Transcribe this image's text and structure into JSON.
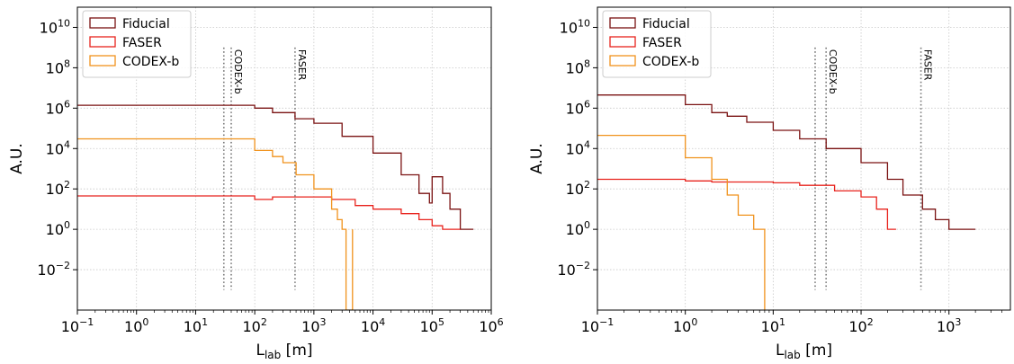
{
  "chart_data": [
    {
      "type": "line",
      "step": true,
      "xlabel_main": "L",
      "xlabel_sub": "lab",
      "xlabel_unit": " [m]",
      "ylabel": "A.U.",
      "xscale": "log",
      "yscale": "log",
      "xlim": [
        0.1,
        1000000
      ],
      "ylim": [
        0.0001,
        100000000000
      ],
      "grid": true,
      "legend_position": "top-left",
      "x_ticks": [
        {
          "value": 0.1,
          "base": "10",
          "exp": "−1"
        },
        {
          "value": 1,
          "base": "10",
          "exp": "0"
        },
        {
          "value": 10,
          "base": "10",
          "exp": "1"
        },
        {
          "value": 100,
          "base": "10",
          "exp": "2"
        },
        {
          "value": 1000,
          "base": "10",
          "exp": "3"
        },
        {
          "value": 10000,
          "base": "10",
          "exp": "4"
        },
        {
          "value": 100000,
          "base": "10",
          "exp": "5"
        },
        {
          "value": 1000000,
          "base": "10",
          "exp": "6"
        }
      ],
      "y_ticks": [
        {
          "value": 0.01,
          "base": "10",
          "exp": "−2"
        },
        {
          "value": 1,
          "base": "10",
          "exp": "0"
        },
        {
          "value": 100,
          "base": "10",
          "exp": "2"
        },
        {
          "value": 10000,
          "base": "10",
          "exp": "4"
        },
        {
          "value": 1000000,
          "base": "10",
          "exp": "6"
        },
        {
          "value": 100000000,
          "base": "10",
          "exp": "8"
        },
        {
          "value": 10000000000,
          "base": "10",
          "exp": "10"
        }
      ],
      "vlines": [
        {
          "x": 30,
          "label": ""
        },
        {
          "x": 40,
          "label": "CODEX-b"
        },
        {
          "x": 480,
          "label": "FASER"
        }
      ],
      "series": [
        {
          "name": "Fiducial",
          "color": "#7a1212",
          "points": [
            [
              0.1,
              1400000
            ],
            [
              100,
              1400000
            ],
            [
              100,
              1000000
            ],
            [
              200,
              1000000
            ],
            [
              200,
              600000
            ],
            [
              480,
              300000
            ],
            [
              1000,
              180000
            ],
            [
              3000,
              40000
            ],
            [
              10000,
              6000
            ],
            [
              30000,
              500
            ],
            [
              60000,
              60
            ],
            [
              90000,
              20
            ],
            [
              100000,
              400
            ],
            [
              150000,
              60
            ],
            [
              200000,
              10
            ],
            [
              300000,
              1
            ],
            [
              500000,
              1
            ]
          ]
        },
        {
          "name": "FASER",
          "color": "#e8231d",
          "points": [
            [
              0.1,
              45
            ],
            [
              100,
              45
            ],
            [
              100,
              30
            ],
            [
              200,
              30
            ],
            [
              200,
              40
            ],
            [
              1000,
              40
            ],
            [
              2000,
              30
            ],
            [
              5000,
              15
            ],
            [
              10000,
              10
            ],
            [
              30000,
              6
            ],
            [
              60000,
              3
            ],
            [
              100000,
              1.5
            ],
            [
              150000,
              1
            ],
            [
              300000,
              1
            ]
          ]
        },
        {
          "name": "CODEX-b",
          "color": "#f0921c",
          "points": [
            [
              0.1,
              30000
            ],
            [
              100,
              30000
            ],
            [
              100,
              8000
            ],
            [
              200,
              8000
            ],
            [
              200,
              4000
            ],
            [
              300,
              2000
            ],
            [
              500,
              500
            ],
            [
              1000,
              100
            ],
            [
              2000,
              10
            ],
            [
              2500,
              3
            ],
            [
              3000,
              1
            ],
            [
              3500,
              0.1
            ],
            [
              3500,
              0.0001
            ],
            [
              4500,
              1
            ]
          ]
        }
      ]
    },
    {
      "type": "line",
      "step": true,
      "xlabel_main": "L",
      "xlabel_sub": "lab",
      "xlabel_unit": " [m]",
      "ylabel": "A.U.",
      "xscale": "log",
      "yscale": "log",
      "xlim": [
        0.1,
        5000
      ],
      "ylim": [
        0.0001,
        100000000000
      ],
      "grid": true,
      "legend_position": "top-left",
      "x_ticks": [
        {
          "value": 0.1,
          "base": "10",
          "exp": "−1"
        },
        {
          "value": 1,
          "base": "10",
          "exp": "0"
        },
        {
          "value": 10,
          "base": "10",
          "exp": "1"
        },
        {
          "value": 100,
          "base": "10",
          "exp": "2"
        },
        {
          "value": 1000,
          "base": "10",
          "exp": "3"
        }
      ],
      "y_ticks": [
        {
          "value": 0.01,
          "base": "10",
          "exp": "−2"
        },
        {
          "value": 1,
          "base": "10",
          "exp": "0"
        },
        {
          "value": 100,
          "base": "10",
          "exp": "2"
        },
        {
          "value": 10000,
          "base": "10",
          "exp": "4"
        },
        {
          "value": 1000000,
          "base": "10",
          "exp": "6"
        },
        {
          "value": 100000000,
          "base": "10",
          "exp": "8"
        },
        {
          "value": 10000000000,
          "base": "10",
          "exp": "10"
        }
      ],
      "vlines": [
        {
          "x": 30,
          "label": ""
        },
        {
          "x": 40,
          "label": "CODEX-b"
        },
        {
          "x": 480,
          "label": "FASER"
        }
      ],
      "series": [
        {
          "name": "Fiducial",
          "color": "#7a1212",
          "points": [
            [
              0.1,
              4500000
            ],
            [
              1,
              4500000
            ],
            [
              1,
              1500000
            ],
            [
              2,
              1500000
            ],
            [
              2,
              600000
            ],
            [
              3,
              400000
            ],
            [
              5,
              200000
            ],
            [
              10,
              80000
            ],
            [
              20,
              30000
            ],
            [
              40,
              10000
            ],
            [
              100,
              2000
            ],
            [
              200,
              300
            ],
            [
              300,
              50
            ],
            [
              500,
              10
            ],
            [
              700,
              3
            ],
            [
              1000,
              1
            ],
            [
              2000,
              1
            ]
          ]
        },
        {
          "name": "FASER",
          "color": "#e8231d",
          "points": [
            [
              0.1,
              300
            ],
            [
              1,
              300
            ],
            [
              1,
              250
            ],
            [
              2,
              250
            ],
            [
              2,
              220
            ],
            [
              5,
              220
            ],
            [
              10,
              200
            ],
            [
              20,
              150
            ],
            [
              50,
              80
            ],
            [
              100,
              40
            ],
            [
              150,
              10
            ],
            [
              200,
              1
            ],
            [
              250,
              1
            ]
          ]
        },
        {
          "name": "CODEX-b",
          "color": "#f0921c",
          "points": [
            [
              0.1,
              45000
            ],
            [
              1,
              45000
            ],
            [
              1,
              3500
            ],
            [
              2,
              3500
            ],
            [
              2,
              300
            ],
            [
              3,
              300
            ],
            [
              3,
              50
            ],
            [
              4,
              50
            ],
            [
              4,
              5
            ],
            [
              6,
              5
            ],
            [
              6,
              1
            ],
            [
              8,
              1
            ],
            [
              8,
              0.0001
            ]
          ]
        }
      ]
    }
  ]
}
